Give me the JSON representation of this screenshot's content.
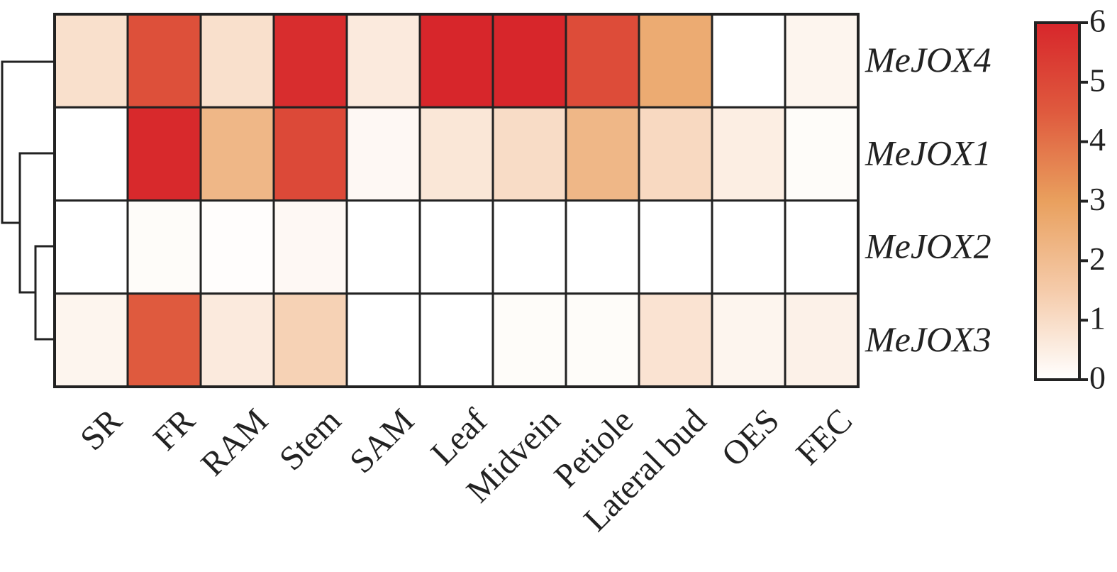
{
  "chart_data": {
    "type": "heatmap",
    "categories": [
      "SR",
      "FR",
      "RAM",
      "Stem",
      "SAM",
      "Leaf",
      "Midvein",
      "Petiole",
      "Lateral bud",
      "OES",
      "FEC"
    ],
    "rows": [
      "MeJOX4",
      "MeJOX1",
      "MeJOX2",
      "MeJOX3"
    ],
    "values": [
      [
        0.9,
        4.8,
        0.9,
        5.8,
        0.6,
        6,
        6,
        4.9,
        2.6,
        0,
        0.3
      ],
      [
        0,
        5.9,
        2.2,
        5,
        0.2,
        0.7,
        1.0,
        2.2,
        1.1,
        0.5,
        0.1
      ],
      [
        0,
        0.1,
        0.05,
        0.2,
        0,
        0,
        0,
        0,
        0,
        0,
        0
      ],
      [
        0.3,
        4.5,
        0.6,
        1.3,
        0,
        0,
        0.1,
        0.1,
        0.8,
        0.3,
        0.4
      ]
    ],
    "colors": [
      "#ffffff",
      "#f5cbaa",
      "#e9a05e",
      "#df5a3e",
      "#d7262b"
    ],
    "zlim": [
      0,
      6
    ],
    "zticks": [
      0,
      1,
      2,
      3,
      4,
      5,
      6
    ]
  }
}
